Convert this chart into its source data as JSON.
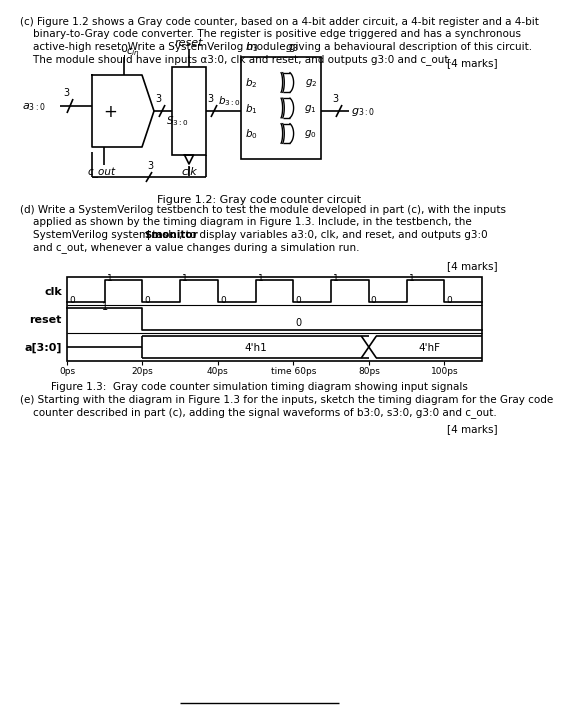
{
  "bg_color": "#ffffff",
  "lines_c": [
    "(c) Figure 1.2 shows a Gray code counter, based on a 4-bit adder circuit, a 4-bit register and a 4-bit",
    "    binary-to-Gray code converter. The register is positive edge triggered and has a synchronous",
    "    active-high reset. Write a SystemVerilog module giving a behavioural description of this circuit.",
    "    The module should have inputs α3:0, clk and reset, and outputs g3:0 and c_out."
  ],
  "marks_c": "[4 marks]",
  "fig12_caption": "Figure 1.2: Gray code counter circuit",
  "lines_d": [
    "(d) Write a SystemVerilog testbench to test the module developed in part (c), with the inputs",
    "    applied as shown by the timing diagram in Figure 1.3. Include, in the testbench, the",
    "    SystemVerilog system task $monitor, to display variables a3:0, clk, and reset, and outputs g3:0",
    "    and c_out, whenever a value changes during a simulation run."
  ],
  "marks_d": "[4 marks]",
  "fig13_caption": "Figure 1.3:  Gray code counter simulation timing diagram showing input signals",
  "lines_e": [
    "(e) Starting with the diagram in Figure 1.3 for the inputs, sketch the timing diagram for the Gray code",
    "    counter described in part (c), adding the signal waveforms of b3:0, s3:0, g3:0 and c_out."
  ],
  "marks_e": "[4 marks]",
  "clk_times": [
    0,
    10,
    20,
    30,
    40,
    50,
    60,
    70,
    80,
    90,
    100,
    110
  ],
  "clk_vals": [
    0,
    1,
    0,
    1,
    0,
    1,
    0,
    1,
    0,
    1,
    0,
    0
  ],
  "time_ticks": [
    0,
    20,
    40,
    60,
    80,
    100
  ],
  "time_tick_labels": [
    "0ps",
    "20ps",
    "40ps",
    "time 60ps",
    "80ps",
    "100ps"
  ]
}
